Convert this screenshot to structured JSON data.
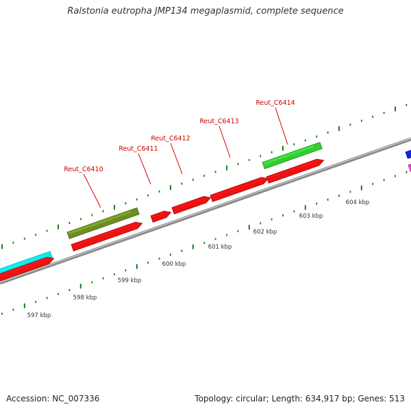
{
  "title": "Ralstonia eutropha JMP134 megaplasmid, complete sequence",
  "footer": {
    "accession": "Accession: NC_007336",
    "summary": "Topology: circular; Length: 634,917 bp; Genes: 513"
  },
  "colors": {
    "backbone": "#8a8a8a",
    "cds_red": "#ee1111",
    "cds_olive": "#6b8e23",
    "cds_green": "#33cc33",
    "cds_cyan": "#00eeee",
    "cds_blue": "#1122dd",
    "cds_magenta": "#ff33cc",
    "tick": "#1a7a1a",
    "label_red": "#cc0000"
  },
  "gene_labels": [
    "Reut_C6410",
    "Reut_C6411",
    "Reut_C6412",
    "Reut_C6413",
    "Reut_C6414"
  ],
  "kbp_labels": [
    "597 kbp",
    "598 kbp",
    "599 kbp",
    "600 kbp",
    "601 kbp",
    "602 kbp",
    "603 kbp",
    "604 kbp"
  ]
}
